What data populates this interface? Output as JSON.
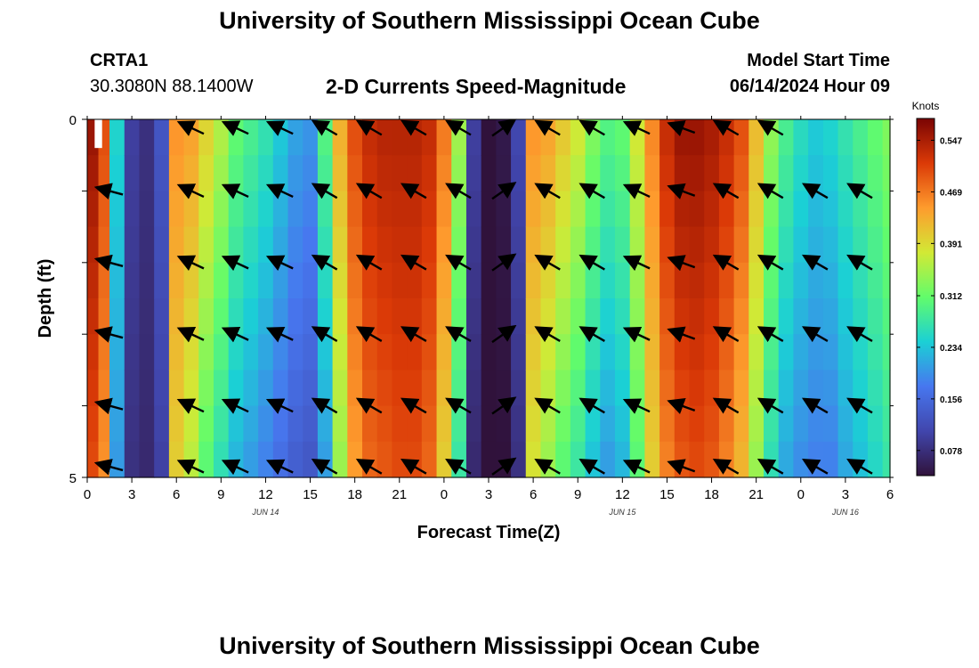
{
  "header": {
    "title": "University of Southern Mississippi Ocean Cube",
    "station": "CRTA1",
    "coords": "30.3080N  88.1400W",
    "subtitle": "2-D Currents Speed-Magnitude",
    "model_label": "Model Start Time",
    "model_time": "06/14/2024 Hour 09"
  },
  "footer": {
    "title": "University of Southern Mississippi Ocean Cube"
  },
  "chart_data": {
    "type": "heatmap",
    "title": "2-D Currents Speed-Magnitude",
    "xlabel": "Forecast Time(Z)",
    "ylabel": "Depth (ft)",
    "x_tick_labels": [
      "0",
      "3",
      "6",
      "9",
      "12",
      "15",
      "18",
      "21",
      "0",
      "3",
      "6",
      "9",
      "12",
      "15",
      "18",
      "21",
      "0",
      "3",
      "6"
    ],
    "x_range_hours": [
      0,
      54
    ],
    "x_units": "forecast hours from 06/14/2024 00Z",
    "date_labels": [
      {
        "label": "JUN 14",
        "hour": 12
      },
      {
        "label": "JUN 15",
        "hour": 36
      },
      {
        "label": "JUN 16",
        "hour": 51
      }
    ],
    "y_tick_labels": [
      "0",
      "5"
    ],
    "ylim": [
      0,
      5
    ],
    "y_inverted": true,
    "colorbar": {
      "unit": "Knots",
      "tick_labels": [
        "0.547",
        "0.469",
        "0.391",
        "0.312",
        "0.234",
        "0.156",
        "0.078"
      ],
      "range": [
        0.04,
        0.58
      ],
      "colors": [
        "#30123b",
        "#4146ad",
        "#4777ef",
        "#1bd0d5",
        "#62fc6b",
        "#d2e935",
        "#fe9b2d",
        "#db3a07",
        "#7a0403"
      ]
    },
    "time_hours": [
      0.5,
      1,
      2,
      3,
      4,
      5,
      6,
      7,
      8,
      9,
      10,
      11,
      12,
      13,
      14,
      15,
      16,
      17,
      18,
      19,
      20,
      21,
      22,
      23,
      24,
      25,
      26,
      27,
      28,
      29,
      30,
      31,
      32,
      33,
      34,
      35,
      36,
      37,
      38,
      39,
      40,
      41,
      42,
      43,
      44,
      45,
      46,
      47,
      48,
      49,
      50,
      51,
      52,
      53,
      54
    ],
    "depth_levels_ft": [
      0.25,
      0.75,
      1.25,
      1.75,
      2.25,
      2.75,
      3.25,
      3.75,
      4.25,
      4.75
    ],
    "speed_knots_surface": [
      0.56,
      0.5,
      0.25,
      0.1,
      0.08,
      0.13,
      0.45,
      0.44,
      0.4,
      0.36,
      0.31,
      0.29,
      0.27,
      0.24,
      0.21,
      0.2,
      0.3,
      0.43,
      0.5,
      0.53,
      0.54,
      0.54,
      0.54,
      0.53,
      0.47,
      0.35,
      0.1,
      0.04,
      0.05,
      0.11,
      0.45,
      0.44,
      0.41,
      0.38,
      0.33,
      0.3,
      0.31,
      0.38,
      0.46,
      0.53,
      0.56,
      0.56,
      0.55,
      0.53,
      0.5,
      0.42,
      0.34,
      0.29,
      0.26,
      0.24,
      0.25,
      0.27,
      0.29,
      0.31,
      0.33
    ],
    "speed_knots_bottom": [
      0.5,
      0.45,
      0.2,
      0.08,
      0.07,
      0.1,
      0.4,
      0.36,
      0.3,
      0.26,
      0.22,
      0.2,
      0.18,
      0.16,
      0.14,
      0.13,
      0.2,
      0.34,
      0.44,
      0.48,
      0.49,
      0.5,
      0.5,
      0.48,
      0.4,
      0.27,
      0.07,
      0.03,
      0.04,
      0.08,
      0.38,
      0.34,
      0.3,
      0.27,
      0.23,
      0.2,
      0.22,
      0.3,
      0.4,
      0.46,
      0.49,
      0.5,
      0.49,
      0.46,
      0.42,
      0.34,
      0.26,
      0.21,
      0.19,
      0.18,
      0.18,
      0.21,
      0.23,
      0.25,
      0.27
    ],
    "direction_vectors": {
      "description": "arrow directions in degrees, 0 = pointing right, 90 = up (screen), at depth rows 0.25,1.25,2.25,3.25,4.25,4.75 ft",
      "hours": [
        1.5,
        7,
        10,
        13,
        16,
        19,
        22,
        25,
        28,
        31,
        34,
        37,
        40,
        43,
        46,
        49,
        52
      ],
      "angle_deg": [
        165,
        155,
        155,
        155,
        150,
        150,
        150,
        150,
        35,
        150,
        150,
        155,
        160,
        150,
        150,
        150,
        150
      ]
    }
  }
}
